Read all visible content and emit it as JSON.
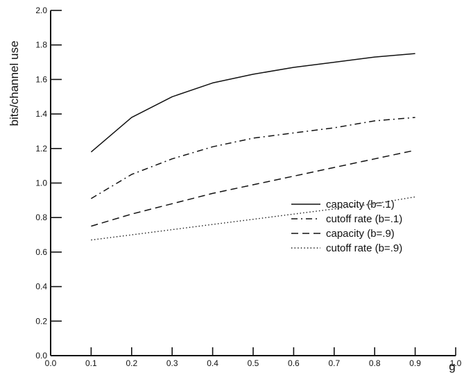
{
  "chart_data": {
    "type": "line",
    "title": "",
    "xlabel": "g",
    "ylabel": "bits/channel use",
    "xlim": [
      0.0,
      1.0
    ],
    "ylim": [
      0.0,
      2.0
    ],
    "xticks": [
      "0.0",
      "0.1",
      "0.2",
      "0.3",
      "0.4",
      "0.5",
      "0.6",
      "0.7",
      "0.8",
      "0.9",
      "1.0"
    ],
    "yticks": [
      "0.0",
      "0.2",
      "0.4",
      "0.6",
      "0.8",
      "1.0",
      "1.2",
      "1.4",
      "1.6",
      "1.8",
      "2.0"
    ],
    "x": [
      0.1,
      0.2,
      0.3,
      0.4,
      0.5,
      0.6,
      0.7,
      0.8,
      0.9
    ],
    "grid": false,
    "legend_position": "lower-right",
    "series": [
      {
        "name": "capacity (b=.1)",
        "line_style": "solid",
        "values": [
          1.18,
          1.38,
          1.5,
          1.58,
          1.63,
          1.67,
          1.7,
          1.73,
          1.75
        ]
      },
      {
        "name": "cutoff rate (b=.1)",
        "line_style": "dash-dot",
        "values": [
          0.91,
          1.05,
          1.14,
          1.21,
          1.26,
          1.29,
          1.32,
          1.36,
          1.38
        ]
      },
      {
        "name": "capacity (b=.9)",
        "line_style": "dashed",
        "values": [
          0.75,
          0.82,
          0.88,
          0.94,
          0.99,
          1.04,
          1.09,
          1.14,
          1.19
        ]
      },
      {
        "name": "cutoff rate (b=.9)",
        "line_style": "dotted",
        "values": [
          0.67,
          0.7,
          0.73,
          0.76,
          0.79,
          0.82,
          0.85,
          0.88,
          0.92
        ]
      }
    ],
    "colors": {
      "line": "#111111",
      "axis": "#111111",
      "background": "#ffffff"
    }
  }
}
